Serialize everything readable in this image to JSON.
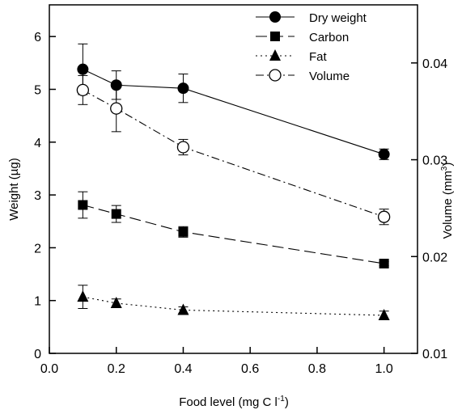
{
  "chart_data": {
    "type": "line",
    "xlabel": "Food level (mg C l",
    "xlabel_sup": "-1",
    "xlabel_end": ")",
    "ylabel": "Weight (µg)",
    "y2label": "Volume (mm",
    "y2label_sup": "3",
    "y2label_end": ")",
    "xlim": [
      0.0,
      1.1
    ],
    "ylim": [
      0,
      6.6
    ],
    "y2lim": [
      0.01,
      0.046
    ],
    "xticks": [
      0.0,
      0.2,
      0.4,
      0.6,
      0.8,
      1.0
    ],
    "xtick_labels": [
      "0.0",
      "0.2",
      "0.4",
      "0.6",
      "0.8",
      "1.0"
    ],
    "yticks": [
      0,
      1,
      2,
      3,
      4,
      5,
      6
    ],
    "ytick_labels": [
      "0",
      "1",
      "2",
      "3",
      "4",
      "5",
      "6"
    ],
    "y2ticks": [
      0.01,
      0.02,
      0.03,
      0.04
    ],
    "y2tick_labels": [
      "0.01",
      "0.02",
      "0.03",
      "0.04"
    ],
    "grid": false,
    "legend_position": "top-right",
    "series": [
      {
        "name": "Dry weight",
        "axis": "left",
        "marker": "filled-circle",
        "line": "solid",
        "x": [
          0.1,
          0.2,
          0.4,
          1.0
        ],
        "y": [
          5.38,
          5.08,
          5.02,
          3.77
        ],
        "err": [
          0.48,
          0.27,
          0.27,
          0.1
        ]
      },
      {
        "name": "Carbon",
        "axis": "left",
        "marker": "filled-square",
        "line": "dashed",
        "x": [
          0.1,
          0.2,
          0.4,
          1.0
        ],
        "y": [
          2.81,
          2.64,
          2.3,
          1.7
        ],
        "err": [
          0.25,
          0.16,
          0.1,
          0.04
        ]
      },
      {
        "name": "Fat",
        "axis": "left",
        "marker": "filled-triangle",
        "line": "dotted",
        "x": [
          0.1,
          0.2,
          0.4,
          1.0
        ],
        "y": [
          1.07,
          0.95,
          0.82,
          0.72
        ],
        "err": [
          0.22,
          0.08,
          0.06,
          0.08
        ]
      },
      {
        "name": "Volume",
        "axis": "right",
        "marker": "open-circle",
        "line": "dash-dot",
        "x": [
          0.1,
          0.2,
          0.4,
          1.0
        ],
        "y": [
          0.0372,
          0.0353,
          0.0313,
          0.0241
        ],
        "err": [
          0.0015,
          0.0024,
          0.0008,
          0.0008
        ]
      }
    ]
  }
}
